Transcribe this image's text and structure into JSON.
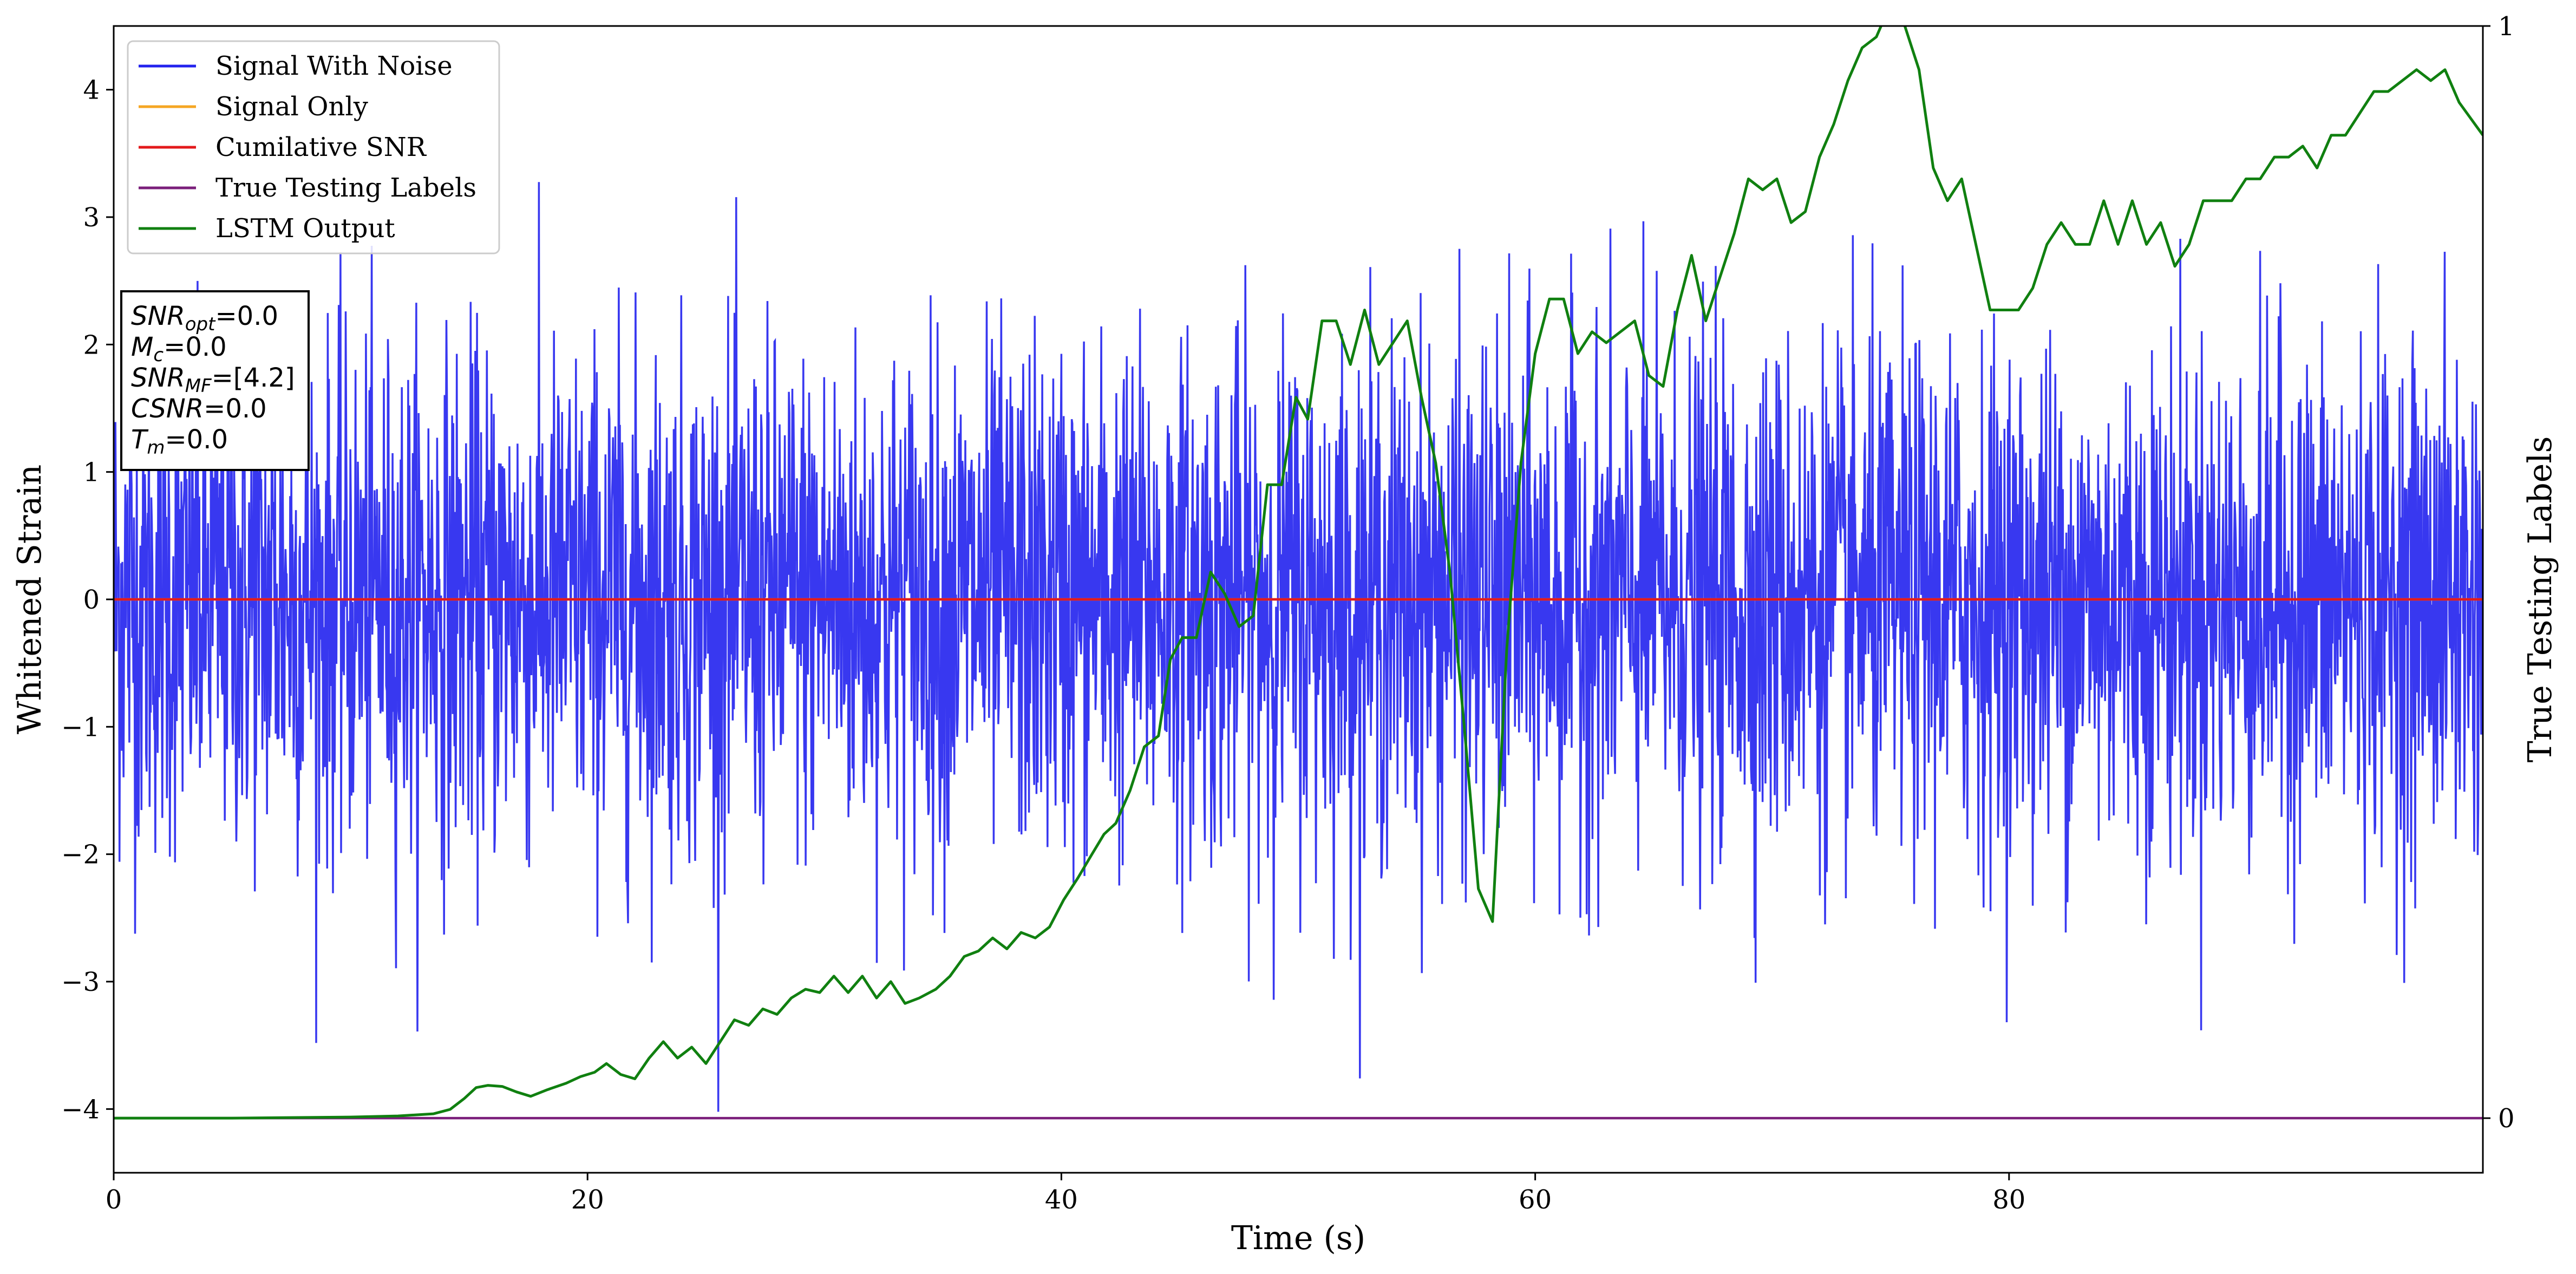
{
  "chart_data": {
    "type": "line",
    "title": "",
    "xlabel": "Time (s)",
    "ylabel": "Whitened Strain",
    "y2label": "True Testing Labels",
    "xlim": [
      0,
      100
    ],
    "ylim": [
      -4.5,
      4.5
    ],
    "y2lim": [
      -0.05,
      1.0
    ],
    "xticks": [
      0,
      20,
      40,
      60,
      80
    ],
    "yticks": [
      -4,
      -3,
      -2,
      -1,
      0,
      1,
      2,
      3,
      4
    ],
    "y2ticks": [
      0,
      1
    ],
    "grid": false,
    "legend_placement": "upper-left",
    "colors": {
      "noise": "#2222ee",
      "signal": "#f5a623",
      "csnr": "#e31a1c",
      "labels": "#7b1f7b",
      "lstm": "#108010"
    },
    "series": [
      {
        "name": "Signal With Noise",
        "axis": "left",
        "kind": "noise",
        "n_samples": 4096,
        "std": 1.0,
        "range": [
          -4.1,
          3.65
        ]
      },
      {
        "name": "Signal Only",
        "axis": "left",
        "x": [
          0,
          100
        ],
        "y": [
          0,
          0
        ]
      },
      {
        "name": "Cumilative SNR",
        "axis": "left",
        "x": [
          0,
          100
        ],
        "y": [
          0,
          0
        ]
      },
      {
        "name": "True Testing Labels",
        "axis": "right",
        "x": [
          0,
          100
        ],
        "y": [
          0,
          0
        ]
      },
      {
        "name": "LSTM Output",
        "axis": "right",
        "x": [
          0,
          5,
          10,
          12,
          13.5,
          14.2,
          14.8,
          15.3,
          15.8,
          16.4,
          17,
          17.6,
          18.3,
          19.1,
          19.7,
          20.3,
          20.8,
          21.4,
          22,
          22.6,
          23.2,
          23.8,
          24.4,
          25,
          25.6,
          26.2,
          26.8,
          27.4,
          28,
          28.6,
          29.2,
          29.8,
          30.4,
          31,
          31.6,
          32.2,
          32.8,
          33.4,
          34,
          34.7,
          35.3,
          35.9,
          36.5,
          37.1,
          37.7,
          38.3,
          38.9,
          39.5,
          40.1,
          40.7,
          41.3,
          41.8,
          42.3,
          42.9,
          43.5,
          44.1,
          44.6,
          45.1,
          45.7,
          46.3,
          46.9,
          47.5,
          48.1,
          48.7,
          49.3,
          49.9,
          50.4,
          51,
          51.6,
          52.2,
          52.8,
          53.4,
          54,
          54.6,
          55.2,
          55.8,
          56.4,
          57,
          57.6,
          58.2,
          58.8,
          59.4,
          60,
          60.6,
          61.2,
          61.8,
          62.4,
          63,
          63.6,
          64.2,
          64.8,
          65.4,
          66,
          66.6,
          67.2,
          67.8,
          68.4,
          69,
          69.6,
          70.2,
          70.8,
          71.4,
          72,
          72.6,
          73.2,
          73.8,
          74.4,
          75,
          75.6,
          76.2,
          76.8,
          77.4,
          78,
          78.6,
          79.2,
          79.8,
          80.4,
          81,
          81.6,
          82.2,
          82.8,
          83.4,
          84,
          84.6,
          85.2,
          85.8,
          86.4,
          87,
          87.6,
          88.2,
          88.8,
          89.4,
          90,
          90.6,
          91.2,
          91.8,
          92.4,
          93,
          93.6,
          94.2,
          94.8,
          95.4,
          96,
          96.6,
          97.2,
          97.8,
          98.4,
          99,
          100
        ],
        "y": [
          0.0,
          0.0,
          0.001,
          0.002,
          0.004,
          0.008,
          0.018,
          0.028,
          0.03,
          0.029,
          0.024,
          0.02,
          0.026,
          0.032,
          0.038,
          0.042,
          0.05,
          0.04,
          0.036,
          0.055,
          0.07,
          0.055,
          0.065,
          0.05,
          0.07,
          0.09,
          0.085,
          0.1,
          0.095,
          0.11,
          0.118,
          0.115,
          0.13,
          0.115,
          0.13,
          0.11,
          0.125,
          0.105,
          0.11,
          0.118,
          0.13,
          0.148,
          0.153,
          0.165,
          0.155,
          0.17,
          0.165,
          0.175,
          0.2,
          0.22,
          0.242,
          0.26,
          0.27,
          0.3,
          0.34,
          0.35,
          0.42,
          0.44,
          0.44,
          0.5,
          0.48,
          0.45,
          0.46,
          0.58,
          0.58,
          0.66,
          0.64,
          0.73,
          0.73,
          0.69,
          0.74,
          0.69,
          0.71,
          0.73,
          0.66,
          0.6,
          0.5,
          0.36,
          0.21,
          0.18,
          0.43,
          0.6,
          0.7,
          0.75,
          0.75,
          0.7,
          0.72,
          0.71,
          0.72,
          0.73,
          0.68,
          0.67,
          0.74,
          0.79,
          0.73,
          0.77,
          0.81,
          0.86,
          0.85,
          0.86,
          0.82,
          0.83,
          0.88,
          0.91,
          0.95,
          0.98,
          0.99,
          1.02,
          1.0,
          0.96,
          0.87,
          0.84,
          0.86,
          0.8,
          0.74,
          0.74,
          0.74,
          0.76,
          0.8,
          0.82,
          0.8,
          0.8,
          0.84,
          0.8,
          0.84,
          0.8,
          0.82,
          0.78,
          0.8,
          0.84,
          0.84,
          0.84,
          0.86,
          0.86,
          0.88,
          0.88,
          0.89,
          0.87,
          0.9,
          0.9,
          0.92,
          0.94,
          0.94,
          0.95,
          0.96,
          0.95,
          0.96,
          0.93,
          0.9
        ],
        "note_y2_scale": "values are on the right axis, 0..1"
      }
    ],
    "legend_entries": [
      "Signal With Noise",
      "Signal Only",
      "Cumilative SNR",
      "True Testing Labels",
      "LSTM Output"
    ],
    "annotations": [
      {
        "sym": "SNR",
        "sub": "opt",
        "val": "=0.0"
      },
      {
        "sym": "M",
        "sub": "c",
        "val": "=0.0"
      },
      {
        "sym": "SNR",
        "sub": "MF",
        "val": "=[4.2]"
      },
      {
        "sym": "CSNR",
        "sub": "",
        "val": "=0.0"
      },
      {
        "sym": "T",
        "sub": "m",
        "val": "=0.0"
      }
    ]
  }
}
